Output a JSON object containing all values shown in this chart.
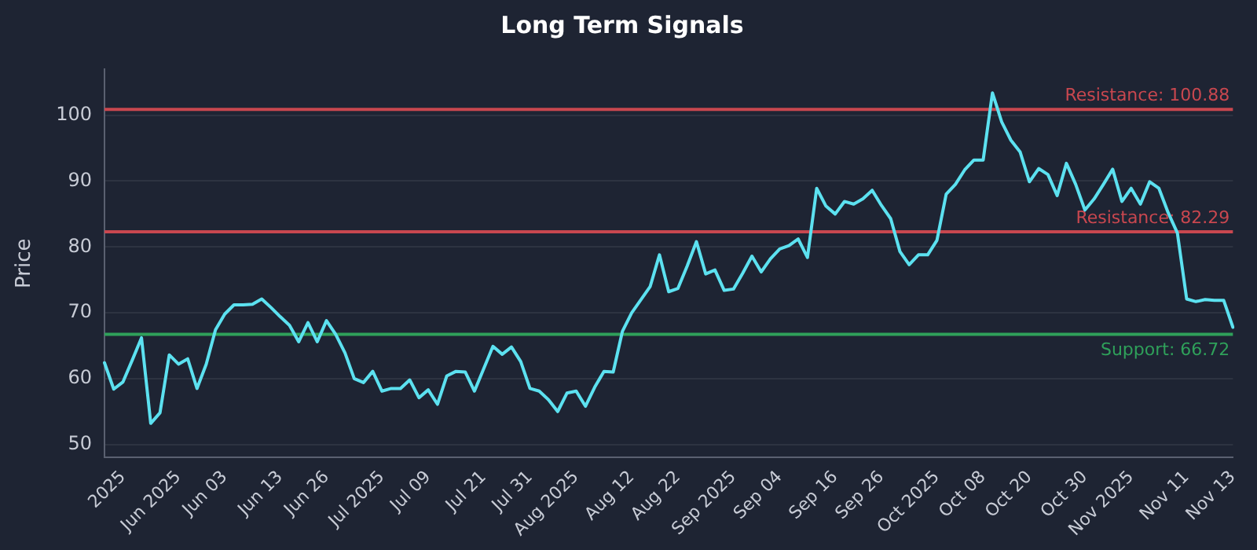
{
  "chart_data": {
    "type": "line",
    "title": "Long Term Signals",
    "ylabel": "Price",
    "categories": [
      null,
      null,
      "2025",
      null,
      null,
      null,
      null,
      null,
      "Jun 2025",
      null,
      null,
      null,
      null,
      "Jun 03",
      null,
      null,
      null,
      null,
      null,
      "Jun 13",
      null,
      null,
      null,
      null,
      "Jun 26",
      null,
      null,
      null,
      null,
      null,
      "Jul 2025",
      null,
      null,
      null,
      null,
      "Jul 09",
      null,
      null,
      null,
      null,
      null,
      "Jul 21",
      null,
      null,
      null,
      null,
      "Jul 31",
      null,
      null,
      null,
      null,
      "Aug 2025",
      null,
      null,
      null,
      null,
      null,
      "Aug 12",
      null,
      null,
      null,
      null,
      "Aug 22",
      null,
      null,
      null,
      null,
      null,
      "Sep 2025",
      null,
      null,
      null,
      null,
      "Sep 04",
      null,
      null,
      null,
      null,
      null,
      "Sep 16",
      null,
      null,
      null,
      null,
      "Sep 26",
      null,
      null,
      null,
      null,
      null,
      "Oct 2025",
      null,
      null,
      null,
      null,
      "Oct 08",
      null,
      null,
      null,
      null,
      "Oct 20",
      null,
      null,
      null,
      null,
      null,
      "Oct 30",
      null,
      null,
      null,
      null,
      "Nov 2025",
      null,
      null,
      null,
      null,
      null,
      "Nov 11",
      null,
      null,
      null,
      null,
      "Nov 13"
    ],
    "series": [
      {
        "color": "#5ce1f0",
        "values": [
          62.4,
          58.4,
          59.5,
          62.8,
          66.2,
          53.2,
          54.8,
          63.6,
          62.2,
          63.0,
          58.5,
          62.2,
          67.4,
          69.8,
          71.2,
          71.2,
          71.3,
          72.1,
          70.8,
          69.4,
          68.1,
          65.6,
          68.5,
          65.6,
          68.8,
          66.7,
          63.9,
          60.0,
          59.4,
          61.1,
          58.1,
          58.5,
          58.5,
          59.8,
          57.1,
          58.3,
          56.1,
          60.4,
          61.1,
          61.0,
          58.1,
          61.5,
          64.9,
          63.7,
          64.8,
          62.6,
          58.5,
          58.1,
          56.8,
          55.0,
          57.8,
          58.1,
          55.8,
          58.7,
          61.1,
          61.0,
          67.2,
          70.0,
          72.0,
          74.0,
          78.8,
          73.2,
          73.7,
          77.1,
          80.8,
          75.9,
          76.5,
          73.4,
          73.6,
          76.0,
          78.6,
          76.2,
          78.2,
          79.7,
          80.2,
          81.2,
          78.4,
          88.9,
          86.2,
          85.0,
          86.9,
          86.5,
          87.3,
          88.6,
          86.3,
          84.3,
          79.3,
          77.3,
          78.8,
          78.8,
          81.0,
          88.0,
          89.5,
          91.7,
          93.2,
          93.2,
          103.4,
          99.0,
          96.2,
          94.4,
          89.9,
          91.9,
          91.0,
          87.8,
          92.7,
          89.5,
          85.6,
          87.3,
          89.5,
          91.8,
          86.9,
          88.9,
          86.5,
          89.9,
          88.9,
          85.2,
          82.1,
          72.1,
          71.7,
          72.0,
          71.9,
          71.9,
          67.8
        ]
      }
    ],
    "ylim": [
      48,
      107
    ],
    "yticks": [
      50,
      60,
      70,
      80,
      90,
      100
    ],
    "grid": "y",
    "marker": "none",
    "line_style": "solid",
    "ref_lines": [
      {
        "axis": "y",
        "value": 100.88,
        "label": "Resistance: 100.88",
        "color": "#c8474f"
      },
      {
        "axis": "y",
        "value": 82.29,
        "label": "Resistance: 82.29",
        "color": "#c8474f"
      },
      {
        "axis": "y",
        "value": 66.72,
        "label": "Support: 66.72",
        "color": "#2fa05a"
      }
    ]
  }
}
